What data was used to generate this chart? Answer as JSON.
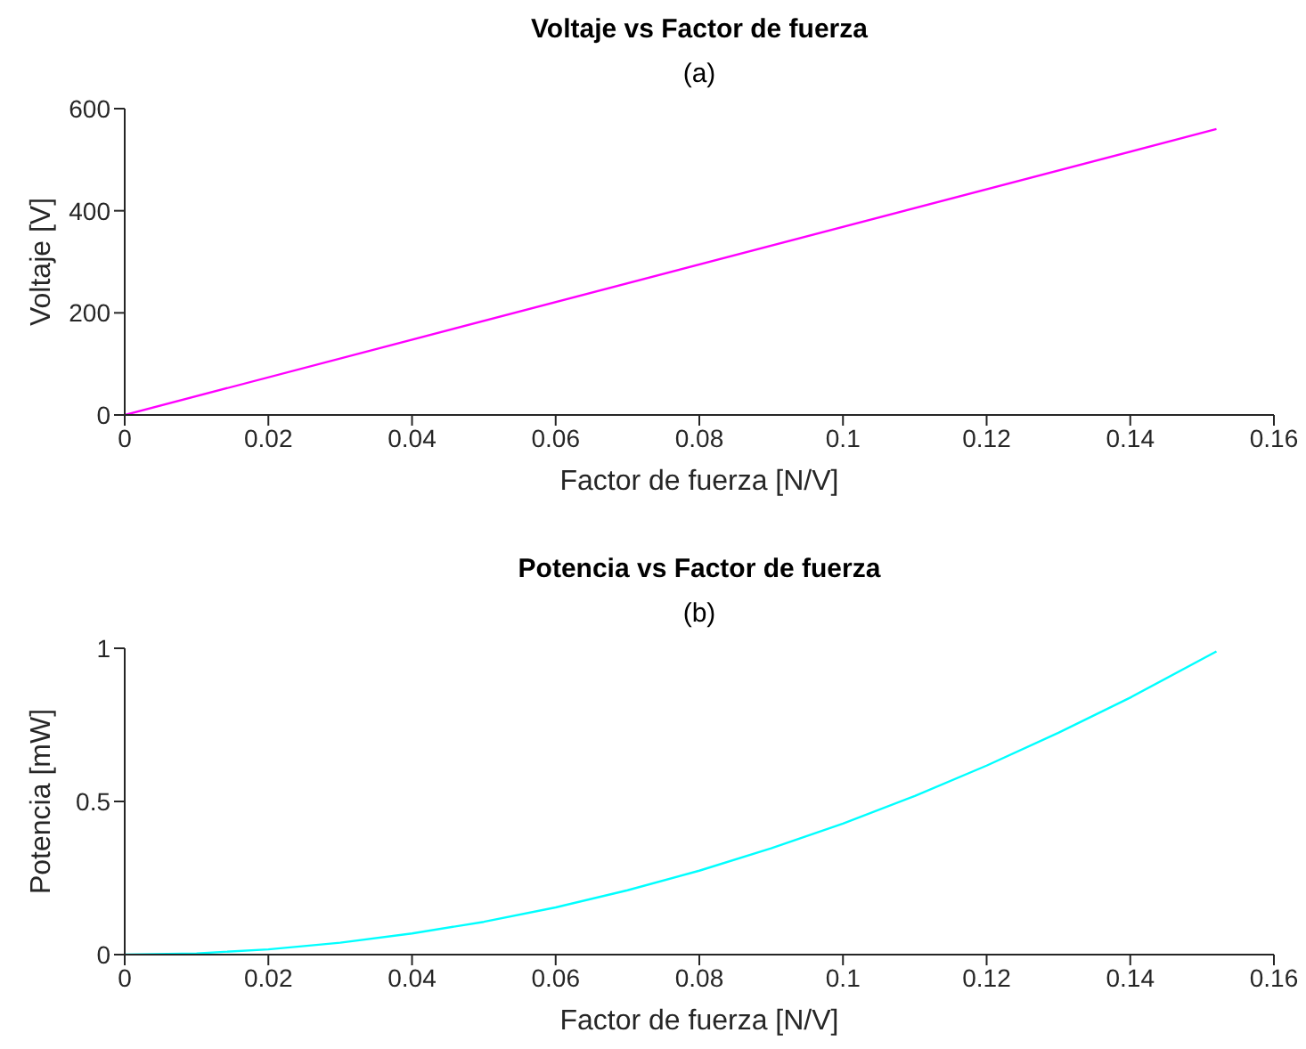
{
  "chart_data": [
    {
      "type": "line",
      "title": "Voltaje vs Factor de fuerza",
      "subtitle": "(a)",
      "xlabel": "Factor de fuerza [N/V]",
      "ylabel": "Voltaje [V]",
      "xlim": [
        0,
        0.16
      ],
      "xticks": [
        0,
        0.02,
        0.04,
        0.06,
        0.08,
        0.1,
        0.12,
        0.14,
        0.16
      ],
      "ylim": [
        0,
        600
      ],
      "yticks": [
        0,
        200,
        400,
        600
      ],
      "series": [
        {
          "color": "#ff00ff",
          "x": [
            0,
            0.152
          ],
          "values": [
            0,
            560
          ]
        }
      ]
    },
    {
      "type": "line",
      "title": "Potencia vs Factor de fuerza",
      "subtitle": "(b)",
      "xlabel": "Factor de fuerza [N/V]",
      "ylabel": "Potencia [mW]",
      "xlim": [
        0,
        0.16
      ],
      "xticks": [
        0,
        0.02,
        0.04,
        0.06,
        0.08,
        0.1,
        0.12,
        0.14,
        0.16
      ],
      "ylim": [
        0,
        1
      ],
      "yticks": [
        0,
        0.5,
        1
      ],
      "series": [
        {
          "color": "#00ffff",
          "x": [
            0,
            0.01,
            0.02,
            0.03,
            0.04,
            0.05,
            0.06,
            0.07,
            0.08,
            0.09,
            0.1,
            0.11,
            0.12,
            0.13,
            0.14,
            0.152
          ],
          "values": [
            0,
            0.004,
            0.017,
            0.039,
            0.069,
            0.107,
            0.154,
            0.21,
            0.274,
            0.347,
            0.428,
            0.518,
            0.617,
            0.724,
            0.839,
            0.99
          ]
        }
      ]
    }
  ]
}
